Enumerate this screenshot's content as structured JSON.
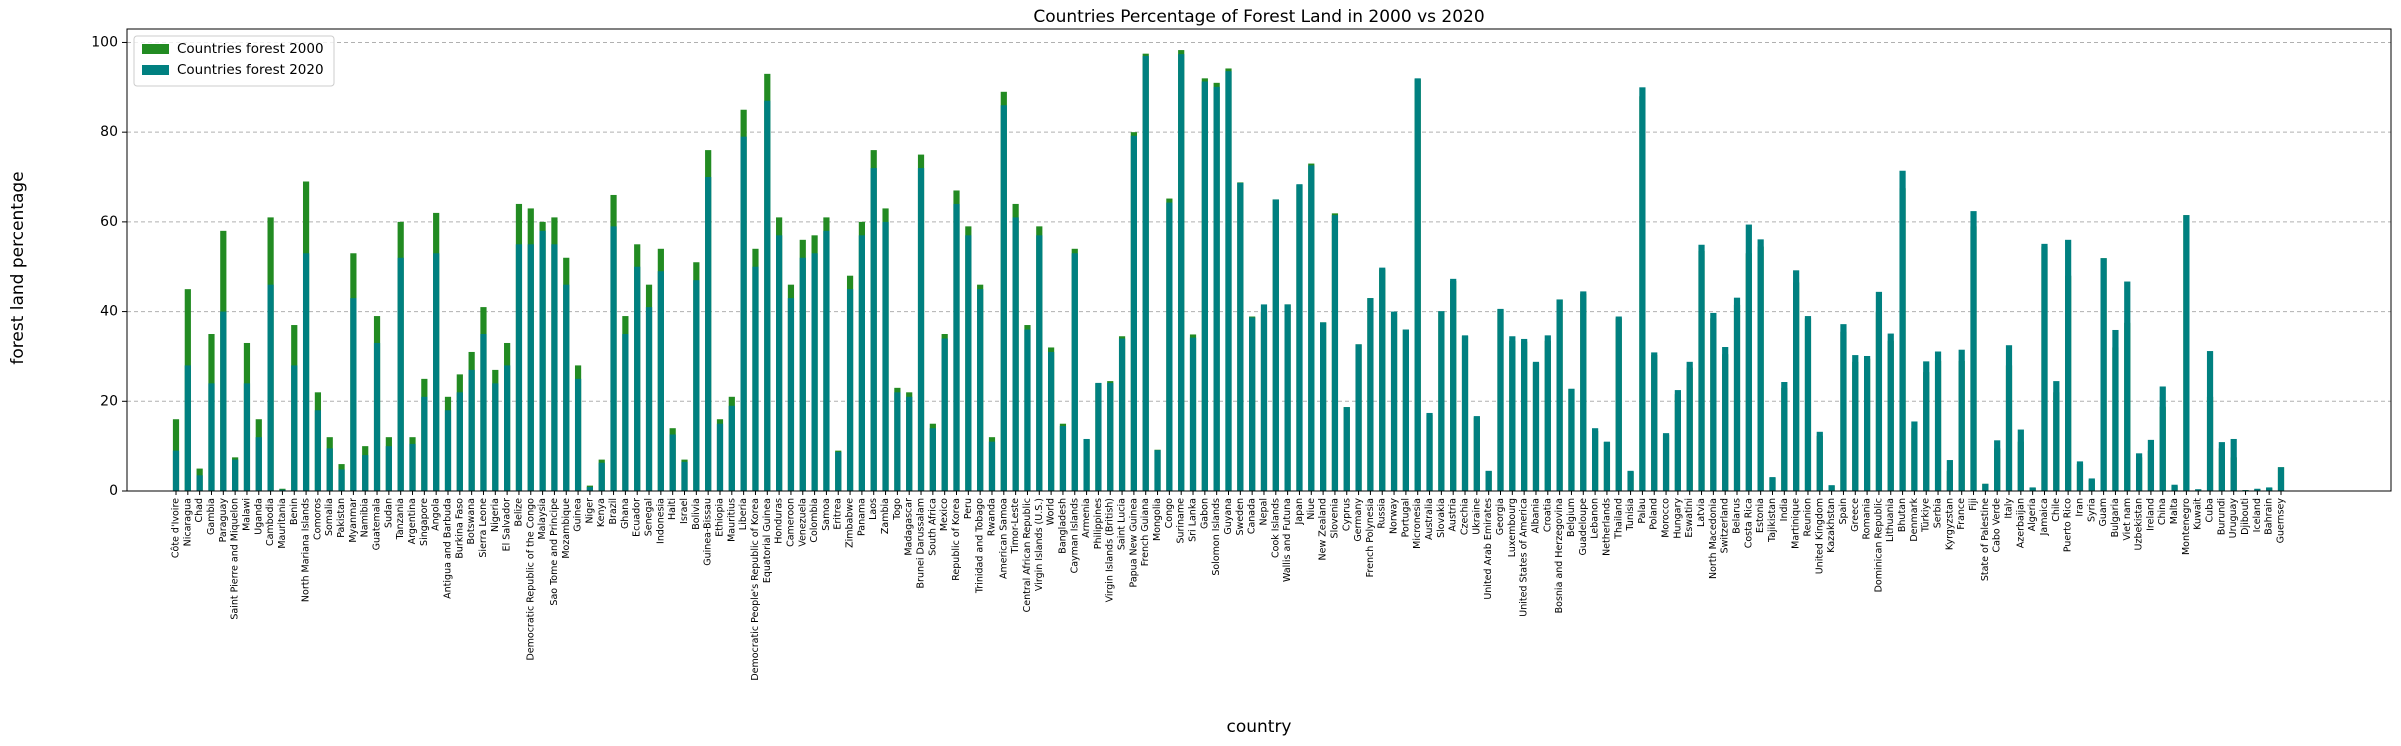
{
  "chart_data": {
    "type": "bar",
    "title": "Countries Percentage of Forest Land in 2000 vs 2020",
    "x_label": "country",
    "y_label": "forest land percentage",
    "ylim": [
      0,
      103
    ],
    "yticks": [
      0,
      20,
      40,
      60,
      80,
      100
    ],
    "grid": true,
    "legend": "upper left",
    "categories": [
      "Côte d'Ivoire",
      "Nicaragua",
      "Chad",
      "Gambia",
      "Paraguay",
      "Saint Pierre and Miquelon",
      "Malawi",
      "Uganda",
      "Cambodia",
      "Mauritania",
      "Benin",
      "North Mariana Islands",
      "Comoros",
      "Somalia",
      "Pakistan",
      "Myanmar",
      "Namibia",
      "Guatemala",
      "Sudan",
      "Tanzania",
      "Argentina",
      "Singapore",
      "Angola",
      "Antigua and Barbuda",
      "Burkina Faso",
      "Botswana",
      "Sierra Leone",
      "Nigeria",
      "El Salvador",
      "Belize",
      "Democratic Republic of the Congo",
      "Malaysia",
      "Sao Tome and Principe",
      "Mozambique",
      "Guinea",
      "Niger",
      "Kenya",
      "Brazil",
      "Ghana",
      "Ecuador",
      "Senegal",
      "Indonesia",
      "Haiti",
      "Israel",
      "Bolivia",
      "Guinea-Bissau",
      "Ethiopia",
      "Mauritius",
      "Liberia",
      "Democratic People's Republic of Korea",
      "Equatorial Guinea",
      "Honduras",
      "Cameroon",
      "Venezuela",
      "Colombia",
      "Samoa",
      "Eritrea",
      "Zimbabwe",
      "Panama",
      "Laos",
      "Zambia",
      "Togo",
      "Madagascar",
      "Brunei Darussalam",
      "South Africa",
      "Mexico",
      "Republic of Korea",
      "Peru",
      "Trinidad and Tobago",
      "Rwanda",
      "American Samoa",
      "Timor-Leste",
      "Central African Republic",
      "Virgin Islands (U.S.)",
      "World",
      "Bangladesh",
      "Cayman Islands",
      "Armenia",
      "Philippines",
      "Virgin Islands (British)",
      "Saint Lucia",
      "Papua New Guinea",
      "French Guiana",
      "Mongolia",
      "Congo",
      "Suriname",
      "Sri Lanka",
      "Gabon",
      "Solomon Islands",
      "Guyana",
      "Sweden",
      "Canada",
      "Nepal",
      "Cook Islands",
      "Wallis and Futuna",
      "Japan",
      "Niue",
      "New Zealand",
      "Slovenia",
      "Cyprus",
      "Germany",
      "French Polynesia",
      "Russia",
      "Norway",
      "Portugal",
      "Micronesia",
      "Australia",
      "Slovakia",
      "Austria",
      "Czechia",
      "Ukraine",
      "United Arab Emirates",
      "Georgia",
      "Luxembourg",
      "United States of America",
      "Albania",
      "Croatia",
      "Bosnia and Herzegovina",
      "Belgium",
      "Guadeloupe",
      "Lebanon",
      "Netherlands",
      "Thailand",
      "Tunisia",
      "Palau",
      "Poland",
      "Morocco",
      "Hungary",
      "Eswatini",
      "Latvia",
      "North Macedonia",
      "Switzerland",
      "Belarus",
      "Costa Rica",
      "Estonia",
      "Tajikistan",
      "India",
      "Martinique",
      "Reunion",
      "United Kingdom",
      "Kazakhstan",
      "Spain",
      "Greece",
      "Romania",
      "Dominican Republic",
      "Lithuania",
      "Bhutan",
      "Denmark",
      "Türkiye",
      "Serbia",
      "Kyrgyzstan",
      "France",
      "Fiji",
      "State of Palestine",
      "Cabo Verde",
      "Italy",
      "Azerbaijan",
      "Algeria",
      "Jamaica",
      "Chile",
      "Puerto Rico",
      "Iran",
      "Syria",
      "Guam",
      "Bulgaria",
      "Viet nam",
      "Uzbekistan",
      "Ireland",
      "China",
      "Malta",
      "Montenegro",
      "Kuwait",
      "Cuba",
      "Burundi",
      "Uruguay",
      "Djibouti",
      "Iceland",
      "Bahrain",
      "Guernsey"
    ],
    "series": [
      {
        "name": "Countries forest 2000",
        "color": "#228b22",
        "values": [
          16,
          45,
          5,
          35,
          58,
          7.5,
          33,
          16,
          61,
          0.5,
          37,
          69,
          22,
          12,
          6,
          53,
          10,
          39,
          12,
          60,
          12,
          25,
          62,
          21,
          26,
          31,
          41,
          27,
          33,
          64,
          63,
          60,
          61,
          52,
          28,
          1.2,
          7,
          66,
          39,
          55,
          46,
          54,
          14,
          7,
          51,
          76,
          16,
          21,
          85,
          54,
          93,
          61,
          46,
          56,
          57,
          61,
          9,
          48,
          60,
          76,
          63,
          23,
          22,
          75,
          15,
          35,
          67,
          59,
          46,
          12,
          89,
          64,
          37,
          59,
          32,
          15,
          54,
          11.5,
          24,
          24.5,
          34.5,
          80,
          97.5,
          9.2,
          65.2,
          98.3,
          34.9,
          92,
          91,
          94.2,
          68.8,
          38.9,
          40,
          65,
          41.6,
          68.2,
          73,
          37.6,
          61.9,
          18.7,
          32.7,
          43,
          49.4,
          39.6,
          36,
          91.8,
          17,
          40,
          46.8,
          34.5,
          16.4,
          4.4,
          40.5,
          33.5,
          33.3,
          28.5,
          33.5,
          42.7,
          22.7,
          44,
          13.4,
          10.9,
          38.5,
          4.3,
          88,
          30.3,
          12.5,
          21.6,
          27.5,
          53.5,
          38.5,
          30.5,
          41.5,
          53,
          54.5,
          2.9,
          23,
          46.5,
          38.5,
          12.3,
          1.2,
          35.5,
          28.8,
          29.5,
          40,
          33.5,
          67.5,
          14,
          26.5,
          29,
          4.5,
          29,
          59,
          1.6,
          9.5,
          28,
          11,
          0.7,
          54.5,
          22,
          48,
          6,
          2.5,
          51.9,
          32,
          37.5,
          7.5,
          9,
          18.8,
          1.1,
          61.5,
          0.3,
          21,
          9.5,
          7.5,
          0.2,
          0.3,
          0.7,
          5.3
        ]
      },
      {
        "name": "Countries forest 2020",
        "color": "#008080",
        "values": [
          9,
          28,
          3.5,
          24,
          40,
          7,
          24,
          12,
          46,
          0.3,
          28,
          53,
          18,
          9.5,
          4.8,
          43,
          8,
          33,
          10,
          52,
          10.5,
          21,
          53,
          18,
          22,
          27,
          35,
          24,
          28,
          55,
          55,
          58,
          55,
          46,
          25,
          0.9,
          6.3,
          59,
          35,
          50,
          41,
          49,
          12.6,
          6.5,
          47,
          70,
          15,
          19,
          79,
          50,
          87,
          57,
          43,
          52,
          53,
          58,
          8.7,
          45,
          57,
          72,
          60,
          22,
          21,
          72,
          14,
          34,
          64,
          57,
          45,
          11,
          86,
          61,
          36,
          57,
          31,
          14.5,
          53,
          11.6,
          24.1,
          24.1,
          34,
          79.2,
          97,
          9.1,
          64.3,
          97.4,
          34.2,
          91.3,
          90.1,
          93.6,
          68.7,
          38.7,
          41.6,
          65,
          41.6,
          68.4,
          72.6,
          37.6,
          61.5,
          18.7,
          32.7,
          43,
          49.8,
          40,
          36,
          92,
          17.4,
          40.1,
          47.3,
          34.7,
          16.7,
          4.5,
          40.6,
          34.5,
          33.9,
          28.8,
          34.7,
          42.7,
          22.8,
          44.5,
          14,
          11,
          38.9,
          4.5,
          90,
          30.9,
          12.9,
          22.5,
          28.8,
          54.9,
          39.7,
          32.1,
          43.1,
          59.4,
          56.1,
          3.1,
          24.3,
          49.2,
          39,
          13.2,
          1.3,
          37.2,
          30.3,
          30.1,
          44.4,
          35.1,
          71.4,
          15.5,
          28.9,
          31.1,
          6.9,
          31.5,
          62.4,
          1.6,
          11.3,
          32.5,
          13.7,
          0.8,
          55.1,
          24.5,
          56,
          6.6,
          2.8,
          51.9,
          35.9,
          46.7,
          8.4,
          11.4,
          23.3,
          1.4,
          61.5,
          0.4,
          31.2,
          10.9,
          11.6,
          0.2,
          0.5,
          0.8,
          5.3
        ]
      }
    ]
  }
}
